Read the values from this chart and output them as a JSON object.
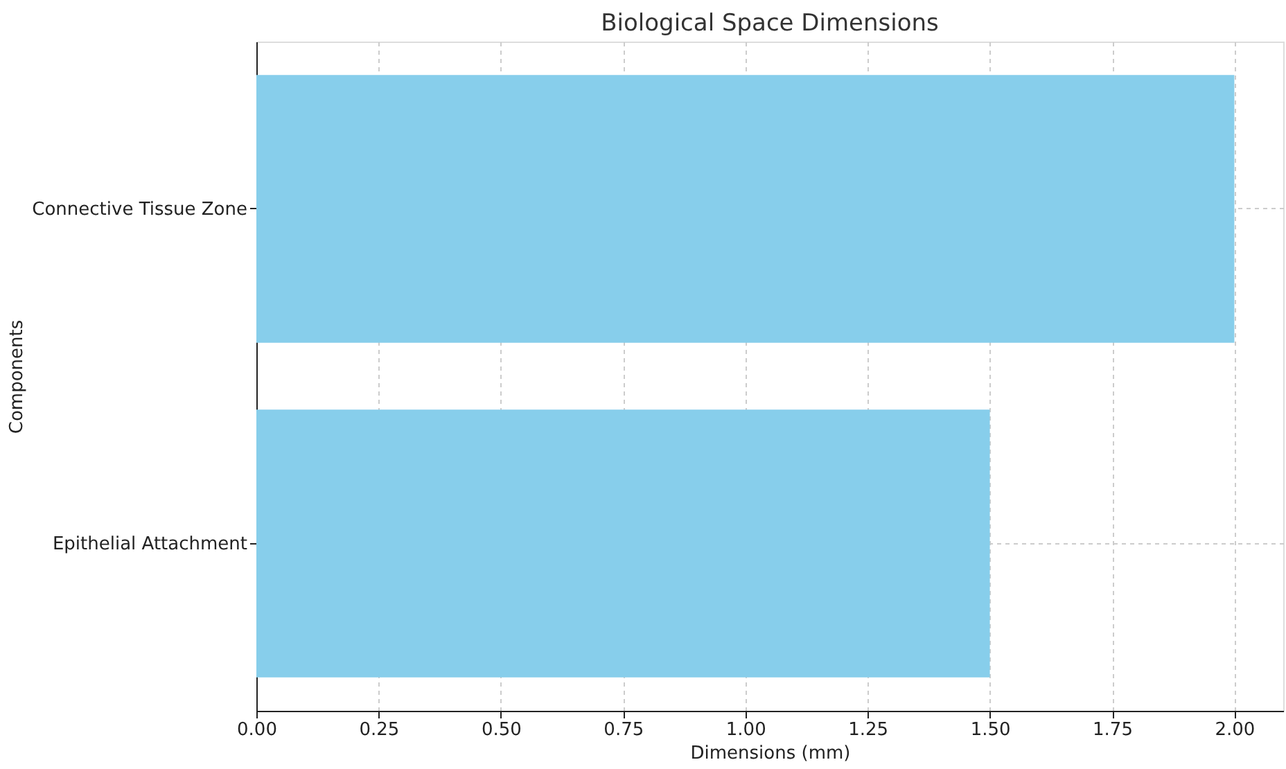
{
  "chart_data": {
    "type": "bar",
    "orientation": "horizontal",
    "title": "Biological Space Dimensions",
    "xlabel": "Dimensions (mm)",
    "ylabel": "Components",
    "categories": [
      "Connective Tissue Zone",
      "Epithelial Attachment"
    ],
    "values": [
      2.0,
      1.5
    ],
    "color": "#87ceeb",
    "xlim": [
      0,
      2.1
    ],
    "xticks": [
      {
        "value": 0,
        "label": "0.00"
      },
      {
        "value": 0.25,
        "label": "0.25"
      },
      {
        "value": 0.5,
        "label": "0.50"
      },
      {
        "value": 0.75,
        "label": "0.75"
      },
      {
        "value": 1,
        "label": "1.00"
      },
      {
        "value": 1.25,
        "label": "1.25"
      },
      {
        "value": 1.5,
        "label": "1.50"
      },
      {
        "value": 1.75,
        "label": "1.75"
      },
      {
        "value": 2,
        "label": "2.00"
      }
    ],
    "grid": true
  }
}
